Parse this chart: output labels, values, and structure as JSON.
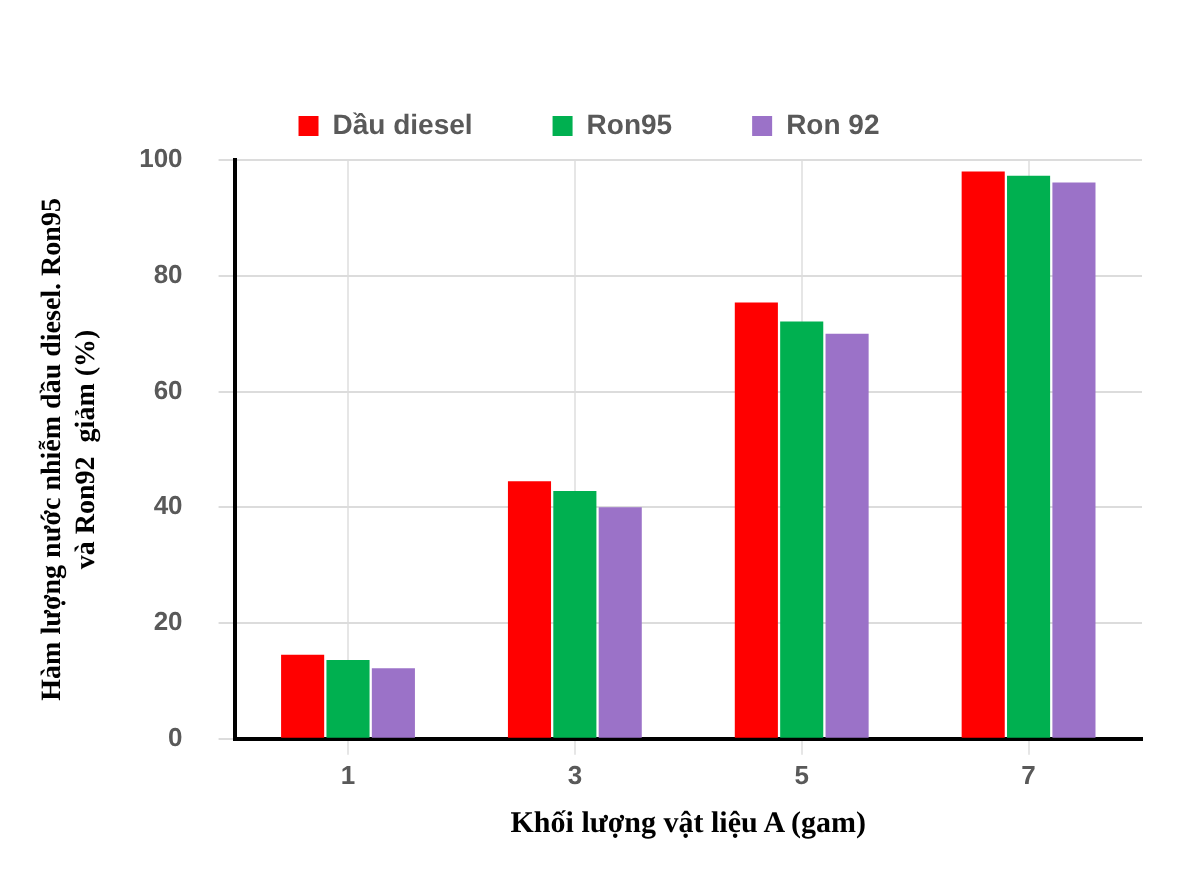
{
  "chart_data": {
    "type": "bar",
    "xlabel": "Khối lượng vật liệu A (gam)",
    "ylabel": "Hàm lượng nước nhiễm dầu diesel. Ron95\nvà Ron92  giảm (%)",
    "categories": [
      "1",
      "3",
      "5",
      "7"
    ],
    "series": [
      {
        "name": "Dầu diesel",
        "color": "#ff0000",
        "values": [
          14.5,
          44.5,
          75.4,
          98
        ]
      },
      {
        "name": "Ron95",
        "color": "#00b050",
        "values": [
          13.6,
          42.8,
          72.1,
          97.3
        ]
      },
      {
        "name": "Ron 92",
        "color": "#9b72c8",
        "values": [
          12.2,
          40,
          70,
          96.1
        ]
      }
    ],
    "ylim": [
      0,
      100
    ],
    "yticks": [
      0,
      20,
      40,
      60,
      80,
      100
    ],
    "grid": true,
    "legend": "top"
  }
}
